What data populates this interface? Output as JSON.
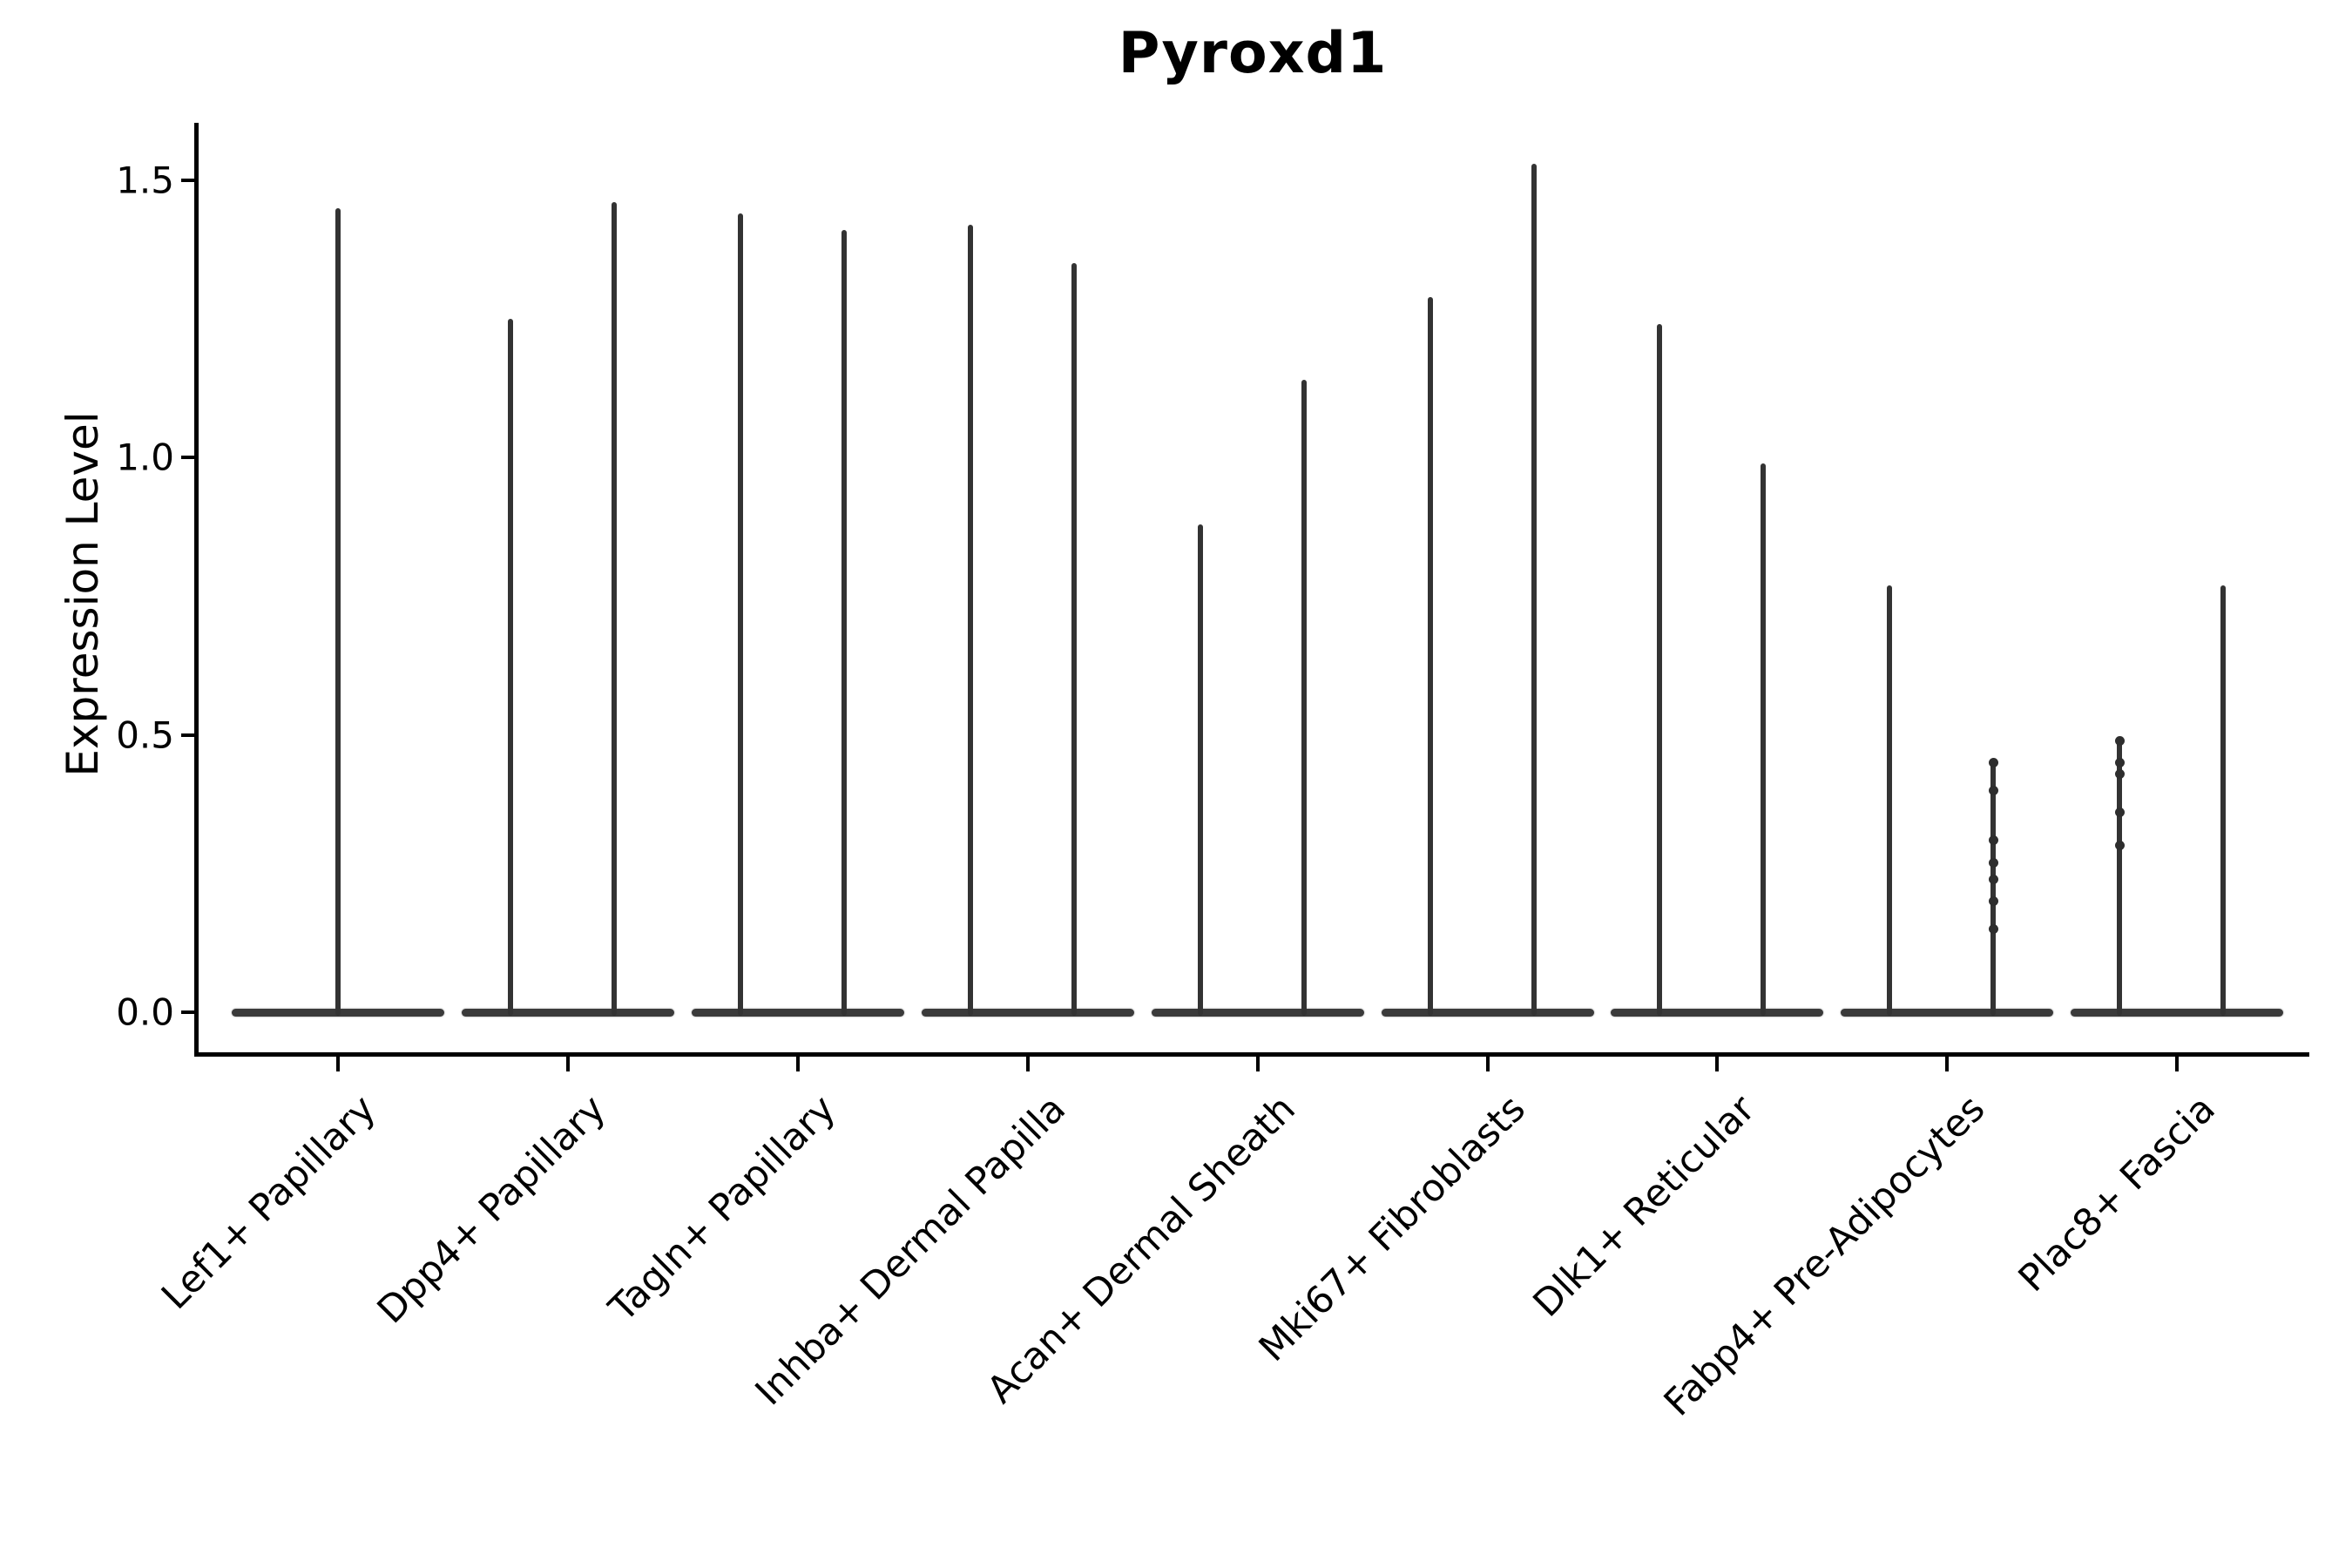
{
  "title": "Pyroxd1",
  "y_axis": {
    "label": "Expression Level",
    "tick_labels": [
      "0.0",
      "0.5",
      "1.0",
      "1.5"
    ]
  },
  "x_axis": {
    "tick_labels": [
      "Lef1+ Papillary",
      "Dpp4+ Papillary",
      "Tagln+ Papillary",
      "Inhba+ Dermal Papilla",
      "Acan+ Dermal Sheath",
      "Mki67+ Fibroblasts",
      "Dlk1+ Reticular",
      "Fabp4+ Pre-Adipocytes",
      "Plac8+ Fascia"
    ]
  },
  "colors": {
    "ink": "#000000",
    "violin": "#333333",
    "background": "#ffffff"
  },
  "chart_data": {
    "type": "violin",
    "title": "Pyroxd1",
    "xlabel": "",
    "ylabel": "Expression Level",
    "ylim": [
      0,
      1.6
    ],
    "yticks": [
      0.0,
      0.5,
      1.0,
      1.5
    ],
    "categories": [
      "Lef1+ Papillary",
      "Dpp4+ Papillary",
      "Tagln+ Papillary",
      "Inhba+ Dermal Papilla",
      "Acan+ Dermal Sheath",
      "Mki67+ Fibroblasts",
      "Dlk1+ Reticular",
      "Fabp4+ Pre-Adipocytes",
      "Plac8+ Fascia"
    ],
    "grid": false,
    "legend": false,
    "violins": [
      {
        "category": "Lef1+ Papillary",
        "base_value": 0.0,
        "spikes": [
          {
            "offset": "center",
            "max": 1.45
          }
        ]
      },
      {
        "category": "Dpp4+ Papillary",
        "base_value": 0.0,
        "spikes": [
          {
            "offset": "left",
            "max": 1.25
          },
          {
            "offset": "right",
            "max": 1.46
          }
        ]
      },
      {
        "category": "Tagln+ Papillary",
        "base_value": 0.0,
        "spikes": [
          {
            "offset": "left",
            "max": 1.44
          },
          {
            "offset": "right",
            "max": 1.41
          }
        ]
      },
      {
        "category": "Inhba+ Dermal Papilla",
        "base_value": 0.0,
        "spikes": [
          {
            "offset": "left",
            "max": 1.42
          },
          {
            "offset": "right",
            "max": 1.35
          }
        ]
      },
      {
        "category": "Acan+ Dermal Sheath",
        "base_value": 0.0,
        "spikes": [
          {
            "offset": "left",
            "max": 0.88
          },
          {
            "offset": "right",
            "max": 1.14
          }
        ]
      },
      {
        "category": "Mki67+ Fibroblasts",
        "base_value": 0.0,
        "spikes": [
          {
            "offset": "left",
            "max": 1.29
          },
          {
            "offset": "right",
            "max": 1.53
          }
        ]
      },
      {
        "category": "Dlk1+ Reticular",
        "base_value": 0.0,
        "spikes": [
          {
            "offset": "left",
            "max": 1.24
          },
          {
            "offset": "right",
            "max": 0.99
          }
        ]
      },
      {
        "category": "Fabp4+ Pre-Adipocytes",
        "base_value": 0.0,
        "spikes": [
          {
            "offset": "left",
            "max": 0.77
          },
          {
            "offset": "right",
            "max": 0.45,
            "points": [
              0.45,
              0.4,
              0.31,
              0.27,
              0.24,
              0.2,
              0.15
            ]
          }
        ]
      },
      {
        "category": "Plac8+ Fascia",
        "base_value": 0.0,
        "spikes": [
          {
            "offset": "left",
            "max": 0.49,
            "points": [
              0.49,
              0.45,
              0.43,
              0.36,
              0.3
            ]
          },
          {
            "offset": "right",
            "max": 0.77
          }
        ]
      }
    ]
  }
}
